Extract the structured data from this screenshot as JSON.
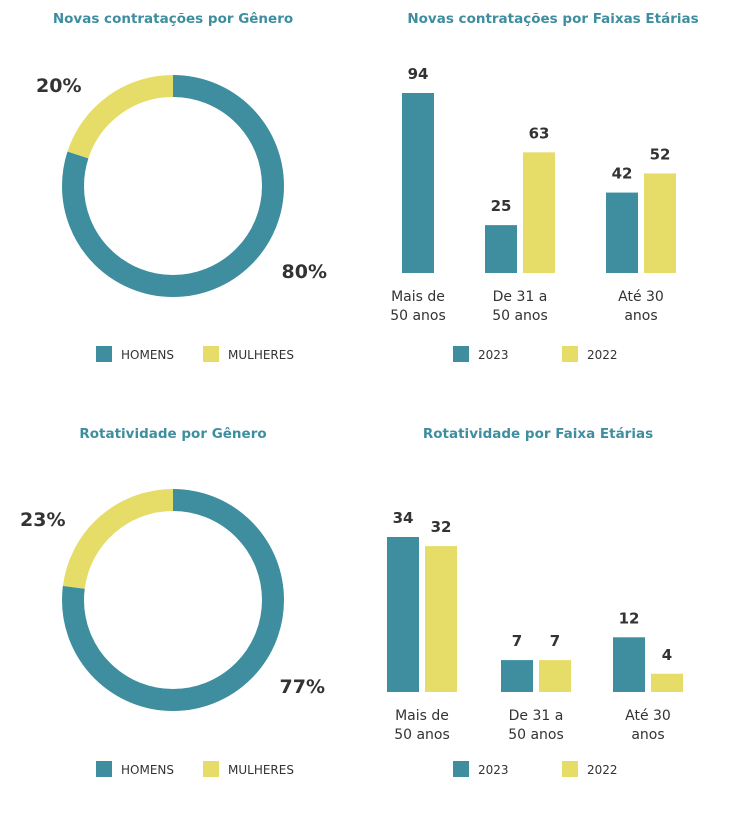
{
  "colors": {
    "primary": "#3e8ea0",
    "secondary": "#e6dc68",
    "text": "#333333"
  },
  "titles": {
    "donut1": "Novas contratações por Gênero",
    "bars1": "Novas contratações por Faixas Etárias",
    "donut2": "Rotatividade por Gênero",
    "bars2": "Rotatividade por Faixa Etárias"
  },
  "chart_data": [
    {
      "type": "pie",
      "title": "Novas contratações por Gênero",
      "categories": [
        "HOMENS",
        "MULHERES"
      ],
      "values": [
        80,
        20
      ],
      "labels": [
        "80%",
        "20%"
      ],
      "legend": [
        "HOMENS",
        "MULHERES"
      ]
    },
    {
      "type": "bar",
      "title": "Novas contratações por Faixas Etárias",
      "categories": [
        [
          "Mais de",
          "50 anos"
        ],
        [
          "De 31 a",
          "50 anos"
        ],
        [
          "Até 30",
          "anos"
        ]
      ],
      "series": [
        {
          "name": "2023",
          "values": [
            94,
            25,
            42
          ]
        },
        {
          "name": "2022",
          "values": [
            null,
            63,
            52
          ]
        }
      ],
      "ylim": [
        0,
        94
      ],
      "legend": [
        "2023",
        "2022"
      ]
    },
    {
      "type": "pie",
      "title": "Rotatividade por Gênero",
      "categories": [
        "HOMENS",
        "MULHERES"
      ],
      "values": [
        77,
        23
      ],
      "labels": [
        "77%",
        "23%"
      ],
      "legend": [
        "HOMENS",
        "MULHERES"
      ]
    },
    {
      "type": "bar",
      "title": "Rotatividade por Faixa Etárias",
      "categories": [
        [
          "Mais de",
          "50 anos"
        ],
        [
          "De 31 a",
          "50 anos"
        ],
        [
          "Até 30",
          "anos"
        ]
      ],
      "series": [
        {
          "name": "2023",
          "values": [
            34,
            7,
            12
          ]
        },
        {
          "name": "2022",
          "values": [
            32,
            7,
            4
          ]
        }
      ],
      "ylim": [
        0,
        34
      ],
      "legend": [
        "2023",
        "2022"
      ]
    }
  ]
}
